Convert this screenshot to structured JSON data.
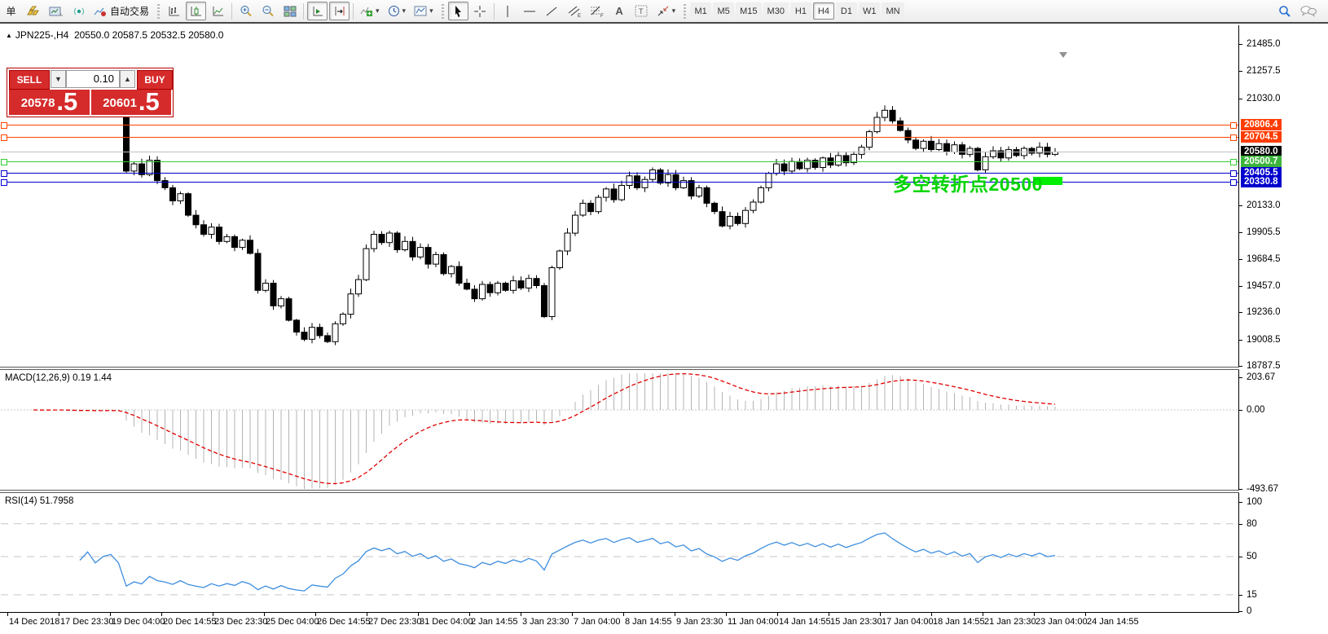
{
  "toolbar": {
    "new_order_label": "单",
    "autotrading_label": "自动交易",
    "timeframes": [
      "M1",
      "M5",
      "M15",
      "M30",
      "H1",
      "H4",
      "D1",
      "W1",
      "MN"
    ],
    "active_timeframe": "H4",
    "icon_names": [
      "new-order",
      "gold-bars",
      "chart-profiles",
      "signal",
      "autotrading",
      "bar-chart",
      "candlestick-chart",
      "line-chart",
      "zoom-in",
      "zoom-out",
      "tile-windows",
      "auto-scroll",
      "chart-shift",
      "indicators-add",
      "periods-clock",
      "templates",
      "cursor",
      "crosshair",
      "vertical-line",
      "horizontal-line",
      "trendline",
      "equidistant-channel",
      "fibonacci",
      "text",
      "text-label",
      "arrows",
      "search",
      "chat"
    ]
  },
  "chart": {
    "collapse_icon": "▲",
    "header_line": "JPN225-,H4  20550.0 20587.5 20532.5 20580.0",
    "annotation": {
      "text": "多空转折点20500",
      "color": "#00d400"
    },
    "price_axis_ticks": [
      "21485.0",
      "21257.5",
      "21030.0",
      "20133.0",
      "19905.5",
      "19684.5",
      "19457.0",
      "19236.0",
      "19008.5",
      "18787.5"
    ],
    "price_lines": [
      {
        "label": "20806.4",
        "line_color": "#ff4500",
        "tag_bg": "#ff3c00",
        "handles": true
      },
      {
        "label": "20704.5",
        "line_color": "#ff4500",
        "tag_bg": "#ff3c00",
        "handles": true
      },
      {
        "label": "20580.0",
        "line_color": "#c0c0c0",
        "tag_bg": "#000000",
        "handles": false
      },
      {
        "label": "20500.7",
        "line_color": "#33cc33",
        "tag_bg": "#3cb43c",
        "handles": true
      },
      {
        "label": "20405.5",
        "line_color": "#0000cc",
        "tag_bg": "#0000cd",
        "handles": true
      },
      {
        "label": "20330.8",
        "line_color": "#0000cc",
        "tag_bg": "#0000cd",
        "handles": true
      }
    ],
    "time_axis": [
      "14 Dec 2018",
      "17 Dec 23:30",
      "19 Dec 04:00",
      "20 Dec 14:55",
      "23 Dec 23:30",
      "25 Dec 04:00",
      "26 Dec 14:55",
      "27 Dec 23:30",
      "31 Dec 04:00",
      "2 Jan 14:55",
      "3 Jan 23:30",
      "7 Jan 04:00",
      "8 Jan 14:55",
      "9 Jan 23:30",
      "11 Jan 04:00",
      "14 Jan 14:55",
      "15 Jan 23:30",
      "17 Jan 04:00",
      "18 Jan 14:55",
      "21 Jan 23:30",
      "23 Jan 04:00",
      "24 Jan 14:55"
    ]
  },
  "trade_panel": {
    "sell_label": "SELL",
    "buy_label": "BUY",
    "volume": "0.10",
    "sell_price_main": "20578",
    "sell_price_frac": ".5",
    "buy_price_main": "20601",
    "buy_price_frac": ".5"
  },
  "indicators": {
    "macd": {
      "label": "MACD(12,26,9) 0.19 1.44",
      "fast": 12,
      "slow": 26,
      "signal": 9,
      "axis_labels": [
        "203.67",
        "0.00",
        "-493.67"
      ],
      "axis_values": [
        203.67,
        0,
        -493.67
      ]
    },
    "rsi": {
      "label": "RSI(14) 51.7958",
      "period": 14,
      "axis_labels": [
        "100",
        "80",
        "50",
        "15",
        "0"
      ],
      "axis_values": [
        100,
        80,
        50,
        15,
        0
      ],
      "level_lines": [
        80,
        50,
        15
      ]
    }
  },
  "chart_data": [
    {
      "type": "candlestick",
      "name": "JPN225- H4",
      "ylim": [
        18787.5,
        21485.0
      ],
      "key_levels": [
        20806.4,
        20704.5,
        20580.0,
        20500.7,
        20405.5,
        20330.8
      ],
      "closes": [
        21030,
        20990,
        21040,
        21070,
        21000,
        20950,
        21010,
        21060,
        20980,
        21030,
        21050,
        20960,
        20420,
        20480,
        20390,
        20510,
        20340,
        20280,
        20170,
        20230,
        20050,
        19970,
        19890,
        19950,
        19830,
        19870,
        19780,
        19840,
        19730,
        19420,
        19480,
        19290,
        19350,
        19170,
        19070,
        19010,
        19110,
        19040,
        18990,
        19140,
        19220,
        19390,
        19510,
        19770,
        19890,
        19820,
        19900,
        19760,
        19830,
        19700,
        19780,
        19640,
        19720,
        19560,
        19620,
        19480,
        19430,
        19350,
        19470,
        19400,
        19480,
        19420,
        19500,
        19440,
        19520,
        19460,
        19200,
        19610,
        19750,
        19900,
        20050,
        20150,
        20080,
        20200,
        20270,
        20180,
        20300,
        20380,
        20280,
        20350,
        20430,
        20320,
        20390,
        20280,
        20340,
        20210,
        20280,
        20150,
        20080,
        19960,
        20040,
        19980,
        20090,
        20160,
        20280,
        20400,
        20480,
        20420,
        20500,
        20440,
        20510,
        20450,
        20530,
        20470,
        20550,
        20490,
        20560,
        20620,
        20750,
        20870,
        20930,
        20840,
        20760,
        20680,
        20610,
        20670,
        20600,
        20650,
        20580,
        20640,
        20560,
        20610,
        20430,
        20540,
        20590,
        20530,
        20600,
        20550,
        20610,
        20570,
        20620,
        20560,
        20580
      ]
    },
    {
      "type": "bar",
      "name": "MACD(12,26,9) histogram + signal",
      "ylim": [
        -493.67,
        203.67
      ],
      "current": "0.19 1.44"
    },
    {
      "type": "line",
      "name": "RSI(14)",
      "ylim": [
        0,
        100
      ],
      "current": 51.7958,
      "levels": [
        80,
        50,
        15
      ]
    }
  ],
  "colors": {
    "buy_sell_red": "#d52b2b",
    "panel_border_red": "#b50000",
    "candle_up": "#ffffff",
    "candle_down": "#000000",
    "macd_signal": "#e00000",
    "macd_histogram": "#b4b4b4",
    "rsi_line": "#3e8ede",
    "annotation_green": "#00d400",
    "highlight_lime": "#00ee00"
  }
}
